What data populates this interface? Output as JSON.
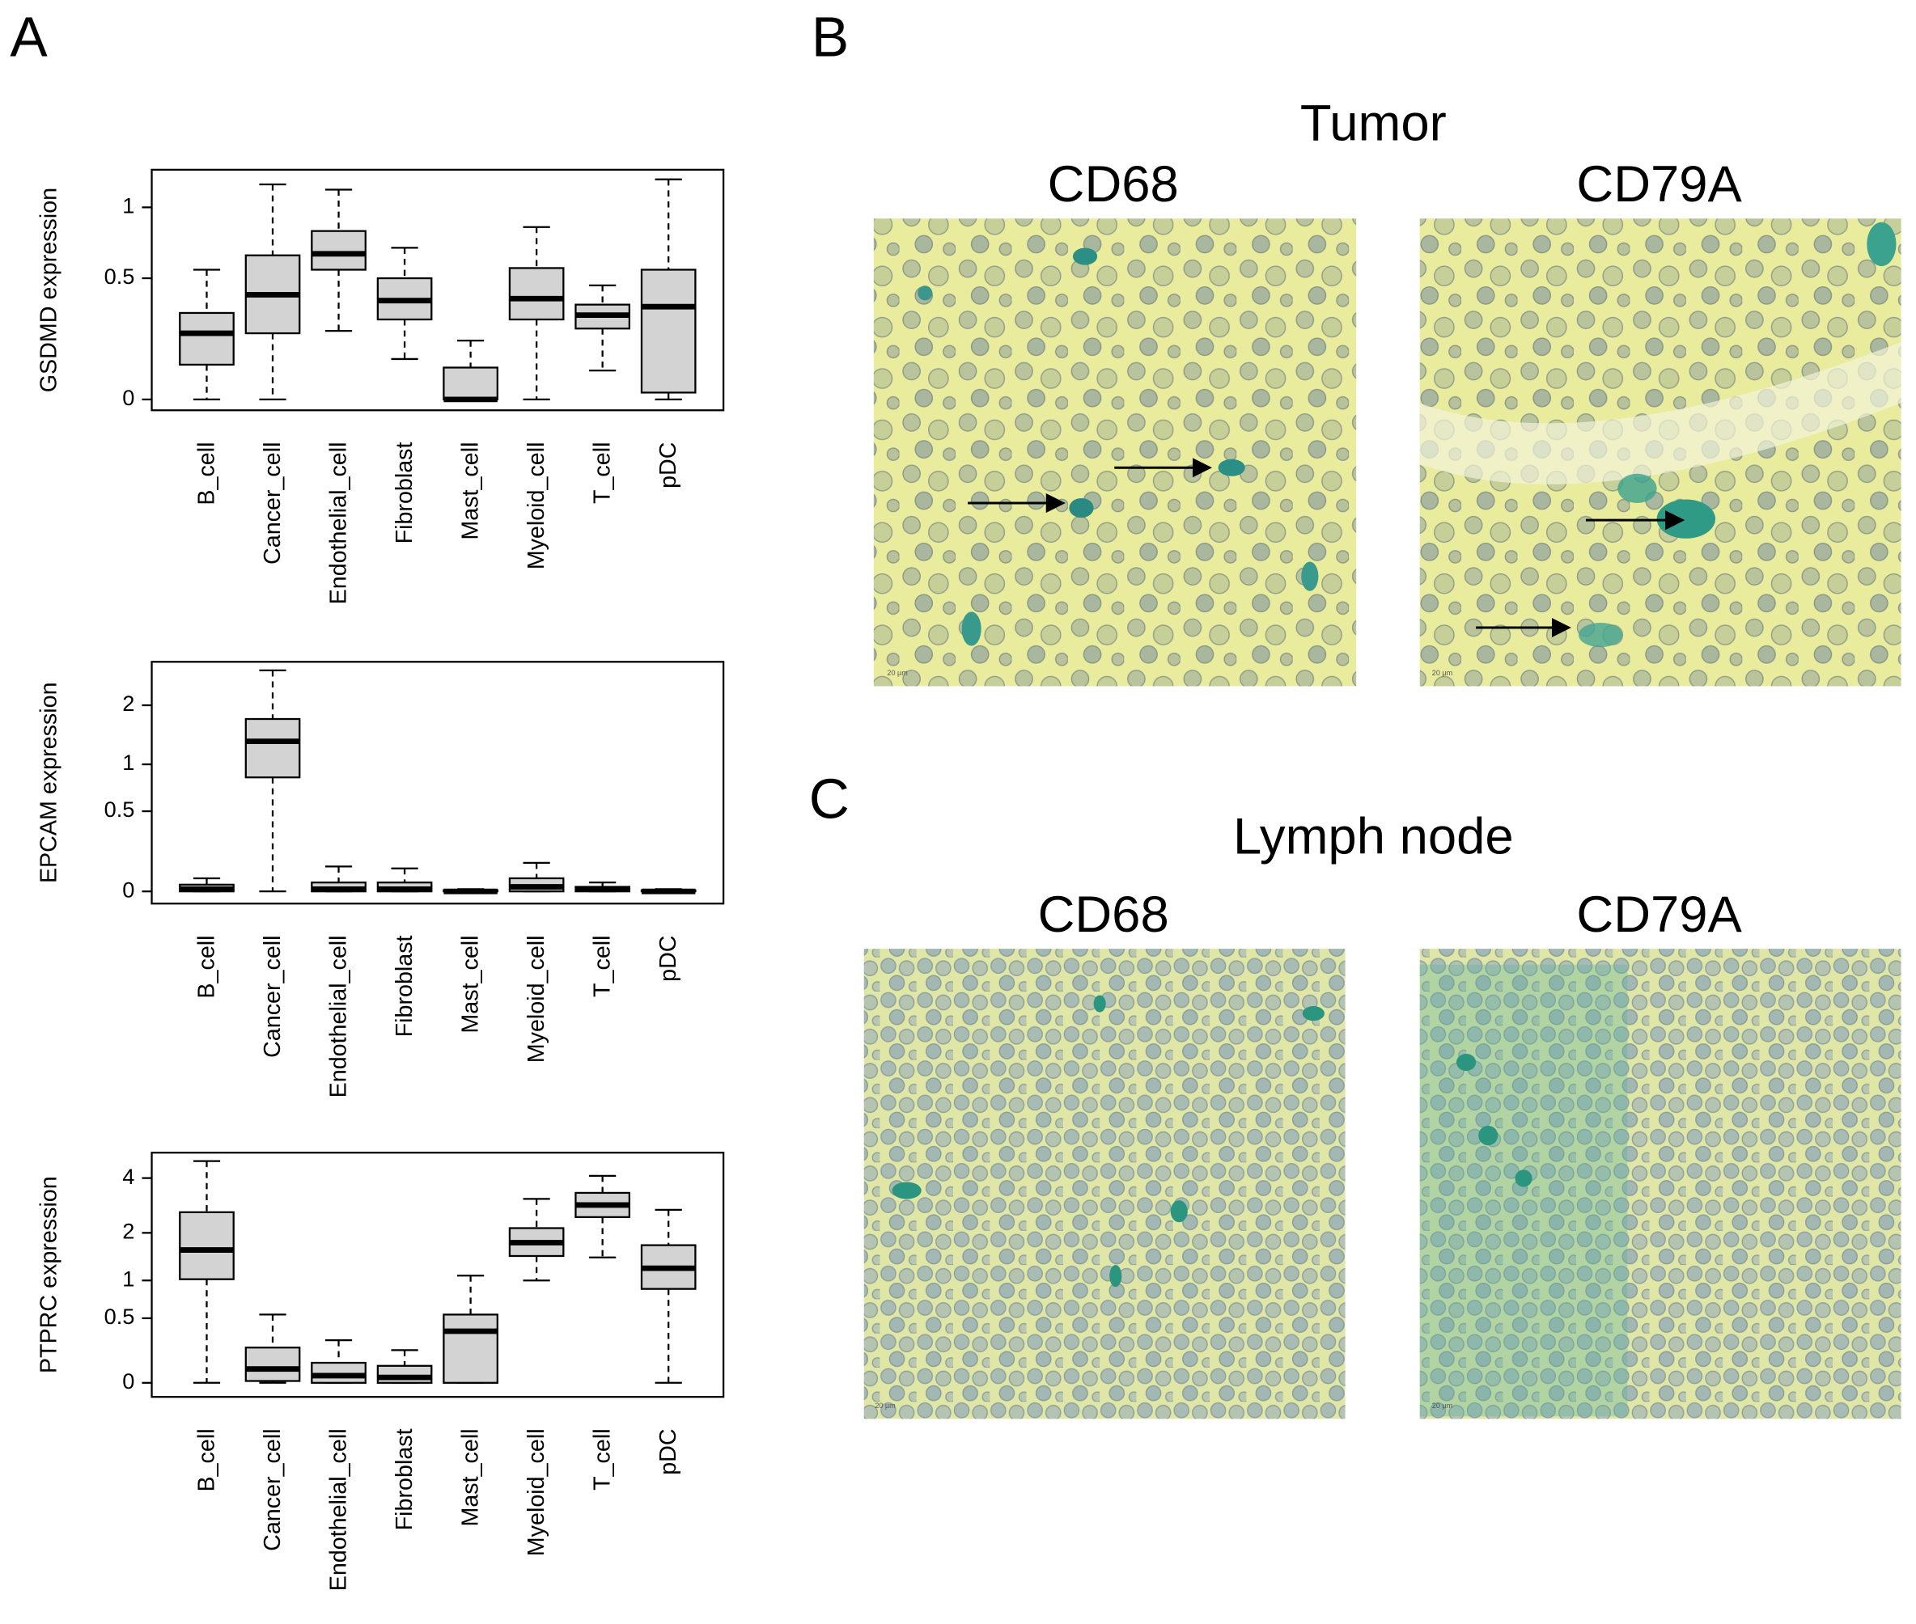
{
  "panel_labels": [
    "A",
    "B",
    "C"
  ],
  "tumor": {
    "title": "Tumor",
    "images": [
      "CD68",
      "CD79A"
    ]
  },
  "lymph_node": {
    "title": "Lymph node",
    "images": [
      "CD68",
      "CD79A"
    ]
  },
  "scale_bar": "20 µm",
  "chart_data": [
    {
      "type": "box",
      "ylabel": "GSDMD expression",
      "yscale": "log",
      "categories": [
        "B_cell",
        "Cancer_cell",
        "Endothelial_cell",
        "Fibroblast",
        "Mast_cell",
        "Myeloid_cell",
        "T_cell",
        "pDC"
      ],
      "min": [
        0,
        0,
        0.24,
        0.13,
        0,
        0,
        0.09,
        0
      ],
      "q1": [
        0.11,
        0.23,
        0.55,
        0.29,
        0,
        0.29,
        0.25,
        0.02
      ],
      "median": [
        0.23,
        0.41,
        0.65,
        0.38,
        0,
        0.39,
        0.31,
        0.35
      ],
      "q3": [
        0.32,
        0.64,
        0.81,
        0.5,
        0.1,
        0.56,
        0.36,
        0.55
      ],
      "max": [
        0.55,
        1.21,
        1.16,
        0.69,
        0.2,
        0.84,
        0.46,
        1.26
      ],
      "color": "#d3d3d3",
      "ylim": [
        -0.03,
        1.36
      ],
      "yticks": [
        0,
        0.5,
        1
      ]
    },
    {
      "type": "box",
      "ylabel": "EPCAM expression",
      "yscale": "log",
      "categories": [
        "B_cell",
        "Cancer_cell",
        "Endothelial_cell",
        "Fibroblast",
        "Mast_cell",
        "Myeloid_cell",
        "T_cell",
        "pDC"
      ],
      "min": [
        0,
        0,
        0,
        0,
        0,
        0,
        0,
        0
      ],
      "q1": [
        0,
        0.84,
        0,
        0,
        0,
        0,
        0,
        0
      ],
      "median": [
        0.01,
        1.33,
        0.01,
        0.01,
        0,
        0.02,
        0.01,
        0
      ],
      "q3": [
        0.03,
        1.72,
        0.04,
        0.04,
        0.005,
        0.06,
        0.02,
        0.005
      ],
      "max": [
        0.06,
        2.88,
        0.12,
        0.11,
        0.01,
        0.14,
        0.04,
        0.01
      ],
      "color": "#d3d3d3",
      "ylim": [
        -0.05,
        3.14
      ],
      "yticks": [
        0,
        0.5,
        1,
        2
      ]
    },
    {
      "type": "box",
      "ylabel": "PTPRC expression",
      "yscale": "log",
      "categories": [
        "B_cell",
        "Cancer_cell",
        "Endothelial_cell",
        "Fibroblast",
        "Mast_cell",
        "Myeloid_cell",
        "T_cell",
        "pDC"
      ],
      "min": [
        0,
        0,
        0,
        0,
        0,
        1,
        1.42,
        0
      ],
      "q1": [
        1.02,
        0.01,
        0,
        0,
        0,
        1.45,
        2.46,
        0.87
      ],
      "median": [
        1.58,
        0.08,
        0.04,
        0.03,
        0.37,
        1.75,
        2.87,
        1.21
      ],
      "q3": [
        2.62,
        0.23,
        0.12,
        0.1,
        0.54,
        2.13,
        3.34,
        1.69
      ],
      "max": [
        4.9,
        0.54,
        0.29,
        0.21,
        1.08,
        3.1,
        4.11,
        2.7
      ],
      "color": "#d3d3d3",
      "ylim": [
        -0.07,
        5.41
      ],
      "yticks": [
        0,
        0.5,
        1,
        2,
        4
      ]
    }
  ]
}
